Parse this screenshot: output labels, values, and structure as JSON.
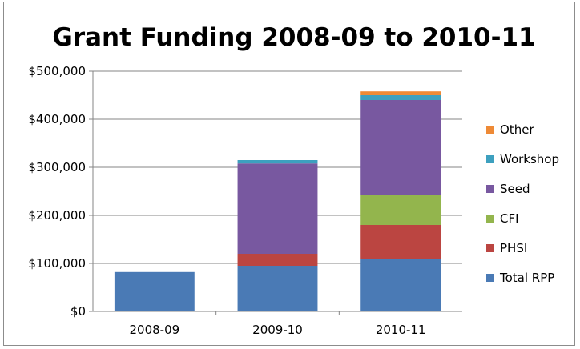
{
  "chart_data": {
    "type": "bar",
    "stacked": true,
    "title": "Grant Funding 2008-09 to 2010-11",
    "xlabel": "",
    "ylabel": "",
    "categories": [
      "2008-09",
      "2009-10",
      "2010-11"
    ],
    "ylim": [
      0,
      500000
    ],
    "yticks": [
      0,
      100000,
      200000,
      300000,
      400000,
      500000
    ],
    "ytick_labels": [
      "$0",
      "$100,000",
      "$200,000",
      "$300,000",
      "$400,000",
      "$500,000"
    ],
    "grid": true,
    "legend_position": "right",
    "series": [
      {
        "name": "Total RPP",
        "color": "#4a7ab5",
        "values": [
          82000,
          95000,
          110000
        ]
      },
      {
        "name": "PHSI",
        "color": "#bb4541",
        "values": [
          0,
          25000,
          70000
        ]
      },
      {
        "name": "CFI",
        "color": "#93b54d",
        "values": [
          0,
          0,
          62000
        ]
      },
      {
        "name": "Seed",
        "color": "#7858a0",
        "values": [
          0,
          188000,
          198000
        ]
      },
      {
        "name": "Workshop",
        "color": "#3da0bf",
        "values": [
          0,
          7000,
          10000
        ]
      },
      {
        "name": "Other",
        "color": "#ee8a36",
        "values": [
          0,
          0,
          8000
        ]
      }
    ]
  }
}
